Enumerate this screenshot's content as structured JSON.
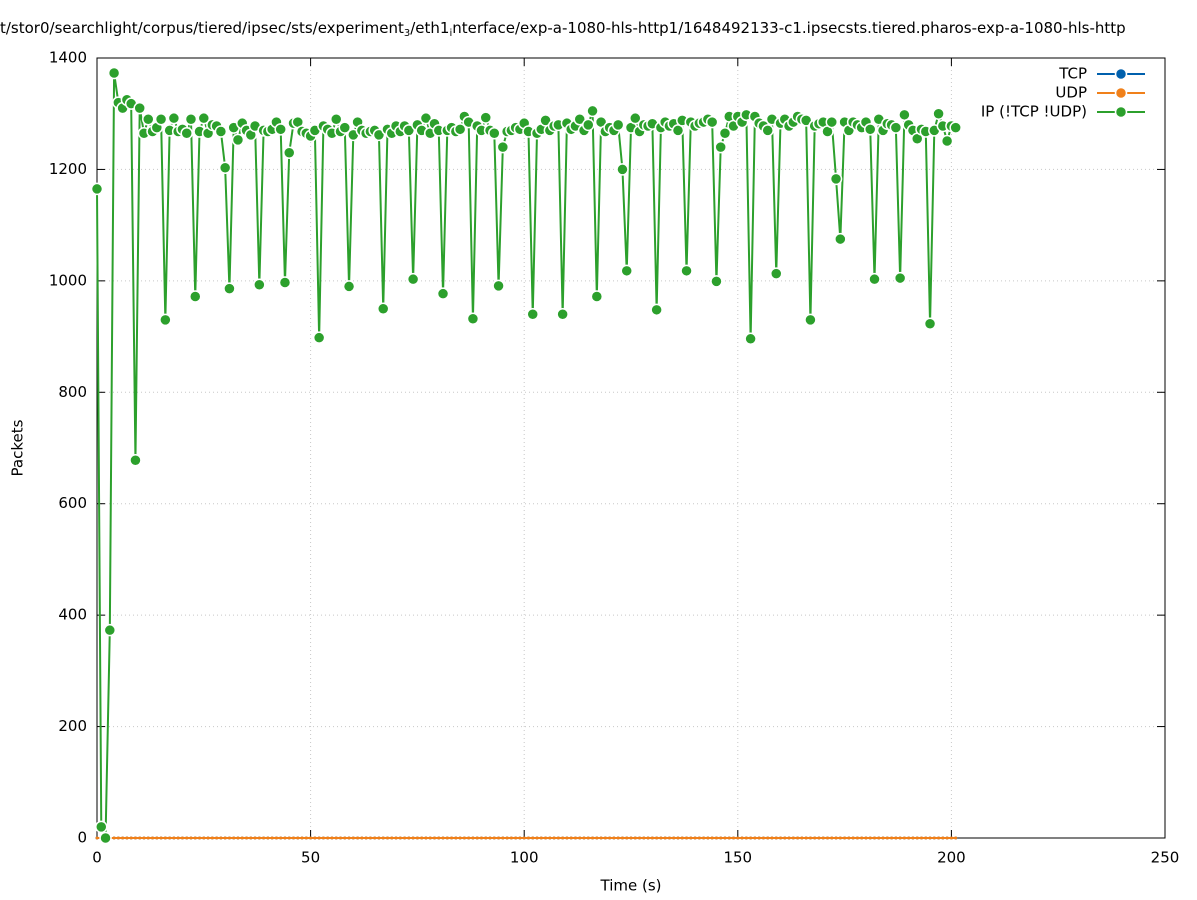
{
  "chart_data": {
    "type": "line",
    "title": [
      "t/stor0/searchlight/corpus/tiered/ipsec/sts/experiment",
      "3",
      "/eth1",
      "i",
      "nterface/exp-a-1080-hls-http1/1648492133-c1.ipsecsts.tiered.pharos-exp-a-1080-hls-http"
    ],
    "x_label": "Time (s)",
    "y_label": "Packets",
    "xlim": [
      0,
      250
    ],
    "xticks": [
      0,
      50,
      100,
      150,
      200,
      250
    ],
    "ylim": [
      0,
      1400
    ],
    "yticks": [
      0,
      200,
      400,
      600,
      800,
      1000,
      1200,
      1400
    ],
    "grid": true,
    "legend": "top-right",
    "x": [
      0,
      1,
      2,
      3,
      4,
      5,
      6,
      7,
      8,
      9,
      10,
      11,
      12,
      13,
      14,
      15,
      16,
      17,
      18,
      19,
      20,
      21,
      22,
      23,
      24,
      25,
      26,
      27,
      28,
      29,
      30,
      31,
      32,
      33,
      34,
      35,
      36,
      37,
      38,
      39,
      40,
      41,
      42,
      43,
      44,
      45,
      46,
      47,
      48,
      49,
      50,
      51,
      52,
      53,
      54,
      55,
      56,
      57,
      58,
      59,
      60,
      61,
      62,
      63,
      64,
      65,
      66,
      67,
      68,
      69,
      70,
      71,
      72,
      73,
      74,
      75,
      76,
      77,
      78,
      79,
      80,
      81,
      82,
      83,
      84,
      85,
      86,
      87,
      88,
      89,
      90,
      91,
      92,
      93,
      94,
      95,
      96,
      97,
      98,
      99,
      100,
      101,
      102,
      103,
      104,
      105,
      106,
      107,
      108,
      109,
      110,
      111,
      112,
      113,
      114,
      115,
      116,
      117,
      118,
      119,
      120,
      121,
      122,
      123,
      124,
      125,
      126,
      127,
      128,
      129,
      130,
      131,
      132,
      133,
      134,
      135,
      136,
      137,
      138,
      139,
      140,
      141,
      142,
      143,
      144,
      145,
      146,
      147,
      148,
      149,
      150,
      151,
      152,
      153,
      154,
      155,
      156,
      157,
      158,
      159,
      160,
      161,
      162,
      163,
      164,
      165,
      166,
      167,
      168,
      169,
      170,
      171,
      172,
      173,
      174,
      175,
      176,
      177,
      178,
      179,
      180,
      181,
      182,
      183,
      184,
      185,
      186,
      187,
      188,
      189,
      190,
      191,
      192,
      193,
      194,
      195,
      196,
      197,
      198,
      199,
      200,
      201
    ],
    "series": [
      {
        "name": "TCP",
        "color": "#0060ad",
        "values": [
          0,
          0,
          0,
          0,
          0,
          0,
          0,
          0,
          0,
          0,
          0,
          0,
          0,
          0,
          0,
          0,
          0,
          0,
          0,
          0,
          0,
          0,
          0,
          0,
          0,
          0,
          0,
          0,
          0,
          0,
          0,
          0,
          0,
          0,
          0,
          0,
          0,
          0,
          0,
          0,
          0,
          0,
          0,
          0,
          0,
          0,
          0,
          0,
          0,
          0,
          0,
          0,
          0,
          0,
          0,
          0,
          0,
          0,
          0,
          0,
          0,
          0,
          0,
          0,
          0,
          0,
          0,
          0,
          0,
          0,
          0,
          0,
          0,
          0,
          0,
          0,
          0,
          0,
          0,
          0,
          0,
          0,
          0,
          0,
          0,
          0,
          0,
          0,
          0,
          0,
          0,
          0,
          0,
          0,
          0,
          0,
          0,
          0,
          0,
          0,
          0,
          0,
          0,
          0,
          0,
          0,
          0,
          0,
          0,
          0,
          0,
          0,
          0,
          0,
          0,
          0,
          0,
          0,
          0,
          0,
          0,
          0,
          0,
          0,
          0,
          0,
          0,
          0,
          0,
          0,
          0,
          0,
          0,
          0,
          0,
          0,
          0,
          0,
          0,
          0,
          0,
          0,
          0,
          0,
          0,
          0,
          0,
          0,
          0,
          0,
          0,
          0,
          0,
          0,
          0,
          0,
          0,
          0,
          0,
          0,
          0,
          0,
          0,
          0,
          0,
          0,
          0,
          0,
          0,
          0,
          0,
          0,
          0,
          0,
          0,
          0,
          0,
          0,
          0,
          0,
          0,
          0,
          0,
          0,
          0,
          0,
          0,
          0,
          0,
          0,
          0,
          0,
          0,
          0,
          0,
          0,
          0,
          0,
          0,
          0,
          0,
          0
        ]
      },
      {
        "name": "UDP",
        "color": "#f0801a",
        "values": [
          0,
          0,
          0,
          0,
          0,
          0,
          0,
          0,
          0,
          0,
          0,
          0,
          0,
          0,
          0,
          0,
          0,
          0,
          0,
          0,
          0,
          0,
          0,
          0,
          0,
          0,
          0,
          0,
          0,
          0,
          0,
          0,
          0,
          0,
          0,
          0,
          0,
          0,
          0,
          0,
          0,
          0,
          0,
          0,
          0,
          0,
          0,
          0,
          0,
          0,
          0,
          0,
          0,
          0,
          0,
          0,
          0,
          0,
          0,
          0,
          0,
          0,
          0,
          0,
          0,
          0,
          0,
          0,
          0,
          0,
          0,
          0,
          0,
          0,
          0,
          0,
          0,
          0,
          0,
          0,
          0,
          0,
          0,
          0,
          0,
          0,
          0,
          0,
          0,
          0,
          0,
          0,
          0,
          0,
          0,
          0,
          0,
          0,
          0,
          0,
          0,
          0,
          0,
          0,
          0,
          0,
          0,
          0,
          0,
          0,
          0,
          0,
          0,
          0,
          0,
          0,
          0,
          0,
          0,
          0,
          0,
          0,
          0,
          0,
          0,
          0,
          0,
          0,
          0,
          0,
          0,
          0,
          0,
          0,
          0,
          0,
          0,
          0,
          0,
          0,
          0,
          0,
          0,
          0,
          0,
          0,
          0,
          0,
          0,
          0,
          0,
          0,
          0,
          0,
          0,
          0,
          0,
          0,
          0,
          0,
          0,
          0,
          0,
          0,
          0,
          0,
          0,
          0,
          0,
          0,
          0,
          0,
          0,
          0,
          0,
          0,
          0,
          0,
          0,
          0,
          0,
          0,
          0,
          0,
          0,
          0,
          0,
          0,
          0,
          0,
          0,
          0,
          0,
          0,
          0,
          0,
          0,
          0,
          0,
          0,
          0,
          0
        ]
      },
      {
        "name": "IP (!TCP  !UDP)",
        "color": "#2ca02c",
        "values": [
          1165,
          20,
          0,
          373,
          1373,
          1320,
          1310,
          1325,
          1318,
          678,
          1310,
          1265,
          1290,
          1268,
          1275,
          1290,
          930,
          1270,
          1292,
          1268,
          1272,
          1265,
          1290,
          972,
          1268,
          1292,
          1265,
          1280,
          1278,
          1268,
          1203,
          986,
          1275,
          1253,
          1283,
          1270,
          1262,
          1278,
          993,
          1270,
          1268,
          1272,
          1285,
          1272,
          997,
          1230,
          1283,
          1285,
          1268,
          1265,
          1260,
          1270,
          898,
          1278,
          1272,
          1265,
          1290,
          1268,
          1275,
          990,
          1262,
          1285,
          1270,
          1265,
          1268,
          1270,
          1262,
          950,
          1272,
          1265,
          1278,
          1268,
          1278,
          1270,
          1003,
          1280,
          1270,
          1292,
          1265,
          1282,
          1270,
          977,
          1270,
          1275,
          1268,
          1272,
          1295,
          1285,
          932,
          1278,
          1270,
          1293,
          1270,
          1265,
          991,
          1240,
          1268,
          1270,
          1275,
          1272,
          1283,
          1268,
          940,
          1265,
          1272,
          1288,
          1270,
          1278,
          1280,
          940,
          1283,
          1272,
          1278,
          1290,
          1270,
          1280,
          1305,
          972,
          1285,
          1268,
          1275,
          1270,
          1280,
          1200,
          1018,
          1275,
          1292,
          1268,
          1280,
          1278,
          1282,
          948,
          1275,
          1285,
          1278,
          1282,
          1270,
          1288,
          1018,
          1285,
          1278,
          1283,
          1285,
          1290,
          1285,
          999,
          1240,
          1265,
          1295,
          1278,
          1295,
          1285,
          1298,
          896,
          1295,
          1283,
          1278,
          1270,
          1290,
          1013,
          1283,
          1290,
          1278,
          1285,
          1295,
          1290,
          1288,
          930,
          1278,
          1282,
          1285,
          1268,
          1285,
          1183,
          1075,
          1285,
          1270,
          1285,
          1280,
          1275,
          1285,
          1272,
          1003,
          1290,
          1270,
          1282,
          1280,
          1275,
          1005,
          1298,
          1280,
          1270,
          1255,
          1272,
          1268,
          923,
          1270,
          1300,
          1278,
          1251,
          1278,
          1275
        ]
      }
    ]
  }
}
